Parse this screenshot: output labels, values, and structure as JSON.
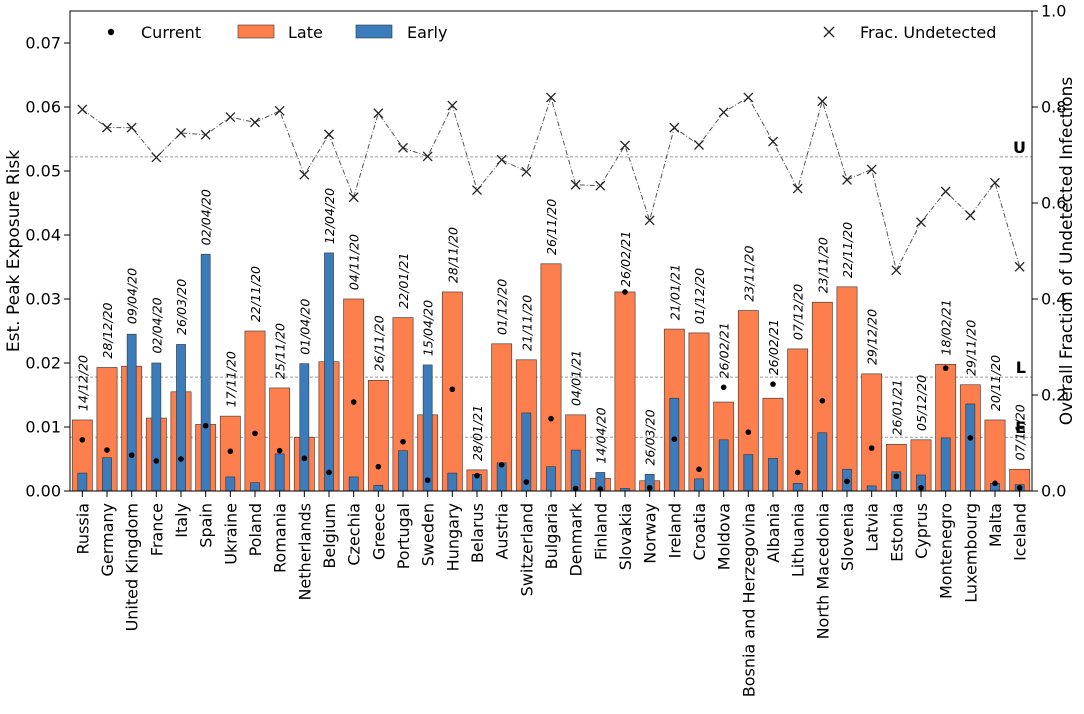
{
  "chart_data": {
    "type": "bar",
    "ylabel_left": "Est. Peak Exposure Risk",
    "ylabel_right": "Overall Fraction of Undetected Infections",
    "ylim_left": [
      0,
      0.075
    ],
    "yticks_left": [
      "0.00",
      "0.01",
      "0.02",
      "0.03",
      "0.04",
      "0.05",
      "0.06",
      "0.07"
    ],
    "ylim_right": [
      0,
      1.0
    ],
    "yticks_right": [
      "0.0",
      "0.2",
      "0.4",
      "0.6",
      "0.8",
      "1.0"
    ],
    "colors": {
      "late": "#fc7f4d",
      "early": "#3a7cbc",
      "line": "#555555"
    },
    "legend": {
      "current": "Current",
      "late": "Late",
      "early": "Early",
      "undetected": "Frac. Undetected"
    },
    "hlines": [
      {
        "label": "U",
        "value": 0.0522
      },
      {
        "label": "L",
        "value": 0.0178
      },
      {
        "label": "E",
        "value": 0.0084
      }
    ],
    "countries": [
      {
        "name": "Russia",
        "late": 0.0111,
        "early": 0.0028,
        "current": 0.008,
        "undetected": 0.795,
        "date": "14/12/20",
        "date_pos": 0.0117
      },
      {
        "name": "Germany",
        "late": 0.0193,
        "early": 0.0052,
        "current": 0.0064,
        "undetected": 0.757,
        "date": "28/12/20",
        "date_pos": 0.0199
      },
      {
        "name": "United Kingdom",
        "late": 0.0195,
        "early": 0.0245,
        "current": 0.0056,
        "undetected": 0.757,
        "date": "09/04/20",
        "date_pos": 0.0253
      },
      {
        "name": "France",
        "late": 0.0114,
        "early": 0.02,
        "current": 0.0047,
        "undetected": 0.695,
        "date": "02/04/20",
        "date_pos": 0.0207
      },
      {
        "name": "Italy",
        "late": 0.0155,
        "early": 0.0229,
        "current": 0.005,
        "undetected": 0.746,
        "date": "26/03/20",
        "date_pos": 0.0236
      },
      {
        "name": "Spain",
        "late": 0.0104,
        "early": 0.037,
        "current": 0.0102,
        "undetected": 0.742,
        "date": "02/04/20",
        "date_pos": 0.0376
      },
      {
        "name": "Ukraine",
        "late": 0.0117,
        "early": 0.0022,
        "current": 0.0062,
        "undetected": 0.779,
        "date": "17/11/20",
        "date_pos": 0.0123
      },
      {
        "name": "Poland",
        "late": 0.025,
        "early": 0.0013,
        "current": 0.009,
        "undetected": 0.768,
        "date": "22/11/20",
        "date_pos": 0.0256
      },
      {
        "name": "Romania",
        "late": 0.0161,
        "early": 0.0058,
        "current": 0.0063,
        "undetected": 0.792,
        "date": "25/11/20",
        "date_pos": 0.0167
      },
      {
        "name": "Netherlands",
        "late": 0.0084,
        "early": 0.0199,
        "current": 0.0051,
        "undetected": 0.659,
        "date": "01/04/20",
        "date_pos": 0.0205
      },
      {
        "name": "Belgium",
        "late": 0.0202,
        "early": 0.0372,
        "current": 0.0029,
        "undetected": 0.743,
        "date": "12/04/20",
        "date_pos": 0.0378
      },
      {
        "name": "Czechia",
        "late": 0.03,
        "early": 0.0022,
        "current": 0.0139,
        "undetected": 0.612,
        "date": "04/11/20",
        "date_pos": 0.0306
      },
      {
        "name": "Greece",
        "late": 0.0173,
        "early": 0.0009,
        "current": 0.0038,
        "undetected": 0.787,
        "date": "26/11/20",
        "date_pos": 0.0179
      },
      {
        "name": "Portugal",
        "late": 0.0271,
        "early": 0.0063,
        "current": 0.0077,
        "undetected": 0.715,
        "date": "22/01/21",
        "date_pos": 0.0277
      },
      {
        "name": "Sweden",
        "late": 0.0119,
        "early": 0.0197,
        "current": 0.0017,
        "undetected": 0.697,
        "date": "15/04/20",
        "date_pos": 0.0203
      },
      {
        "name": "Hungary",
        "late": 0.0311,
        "early": 0.0028,
        "current": 0.0159,
        "undetected": 0.803,
        "date": "28/11/20",
        "date_pos": 0.0317
      },
      {
        "name": "Belarus",
        "late": 0.0033,
        "early": 0.0026,
        "current": 0.0024,
        "undetected": 0.627,
        "date": "28/01/21",
        "date_pos": 0.0039
      },
      {
        "name": "Austria",
        "late": 0.023,
        "early": 0.0044,
        "current": 0.0041,
        "undetected": 0.69,
        "date": "01/12/20",
        "date_pos": 0.0236
      },
      {
        "name": "Switzerland",
        "late": 0.0205,
        "early": 0.0122,
        "current": 0.0014,
        "undetected": 0.665,
        "date": "21/11/20",
        "date_pos": 0.0211
      },
      {
        "name": "Bulgaria",
        "late": 0.0355,
        "early": 0.0038,
        "current": 0.0113,
        "undetected": 0.82,
        "date": "26/11/20",
        "date_pos": 0.0361
      },
      {
        "name": "Denmark",
        "late": 0.0119,
        "early": 0.0064,
        "current": 0.0004,
        "undetected": 0.638,
        "date": "04/01/21",
        "date_pos": 0.0125
      },
      {
        "name": "Finland",
        "late": 0.002,
        "early": 0.0029,
        "current": 0.0003,
        "undetected": 0.636,
        "date": "14/04/20",
        "date_pos": 0.0035
      },
      {
        "name": "Slovakia",
        "late": 0.0311,
        "early": 0.0004,
        "current": 0.0311,
        "undetected": 0.72,
        "date": "26/02/21",
        "date_pos": 0.0311
      },
      {
        "name": "Norway",
        "late": 0.0016,
        "early": 0.0026,
        "current": 0.0005,
        "undetected": 0.564,
        "date": "26/03/20",
        "date_pos": 0.0032
      },
      {
        "name": "Ireland",
        "late": 0.0253,
        "early": 0.0145,
        "current": 0.0081,
        "undetected": 0.757,
        "date": "21/01/21",
        "date_pos": 0.0259
      },
      {
        "name": "Croatia",
        "late": 0.0247,
        "early": 0.0019,
        "current": 0.0034,
        "undetected": 0.721,
        "date": "01/12/20",
        "date_pos": 0.0253
      },
      {
        "name": "Moldova",
        "late": 0.0139,
        "early": 0.008,
        "current": 0.0162,
        "undetected": 0.789,
        "date": "26/02/21",
        "date_pos": 0.0168
      },
      {
        "name": "Bosnia and Herzegovina",
        "late": 0.0282,
        "early": 0.0057,
        "current": 0.0092,
        "undetected": 0.82,
        "date": "23/11/20",
        "date_pos": 0.0288
      },
      {
        "name": "Albania",
        "late": 0.0145,
        "early": 0.0051,
        "current": 0.0167,
        "undetected": 0.728,
        "date": "26/02/21",
        "date_pos": 0.0173
      },
      {
        "name": "Lithuania",
        "late": 0.0222,
        "early": 0.0012,
        "current": 0.0029,
        "undetected": 0.63,
        "date": "07/12/20",
        "date_pos": 0.0228
      },
      {
        "name": "North Macedonia",
        "late": 0.0295,
        "early": 0.0091,
        "current": 0.0141,
        "undetected": 0.812,
        "date": "23/11/20",
        "date_pos": 0.0301
      },
      {
        "name": "Slovenia",
        "late": 0.0319,
        "early": 0.0034,
        "current": 0.0015,
        "undetected": 0.648,
        "date": "22/11/20",
        "date_pos": 0.0325
      },
      {
        "name": "Latvia",
        "late": 0.0183,
        "early": 0.0008,
        "current": 0.0067,
        "undetected": 0.67,
        "date": "29/12/20",
        "date_pos": 0.0189
      },
      {
        "name": "Estonia",
        "late": 0.0073,
        "early": 0.003,
        "current": 0.0023,
        "undetected": 0.46,
        "date": "26/01/21",
        "date_pos": 0.0079
      },
      {
        "name": "Cyprus",
        "late": 0.008,
        "early": 0.0025,
        "current": 0.0005,
        "undetected": 0.56,
        "date": "05/12/20",
        "date_pos": 0.0086
      },
      {
        "name": "Montenegro",
        "late": 0.0198,
        "early": 0.0083,
        "current": 0.0192,
        "undetected": 0.624,
        "date": "18/02/21",
        "date_pos": 0.0204
      },
      {
        "name": "Luxembourg",
        "late": 0.0166,
        "early": 0.0136,
        "current": 0.0083,
        "undetected": 0.574,
        "date": "29/11/20",
        "date_pos": 0.0172
      },
      {
        "name": "Malta",
        "late": 0.0111,
        "early": 0.0012,
        "current": 0.0012,
        "undetected": 0.642,
        "date": "20/11/20",
        "date_pos": 0.0117
      },
      {
        "name": "Iceland",
        "late": 0.0034,
        "early": 0.001,
        "current": 0.0005,
        "undetected": 0.467,
        "date": "07/11/20",
        "date_pos": 0.004
      }
    ]
  }
}
